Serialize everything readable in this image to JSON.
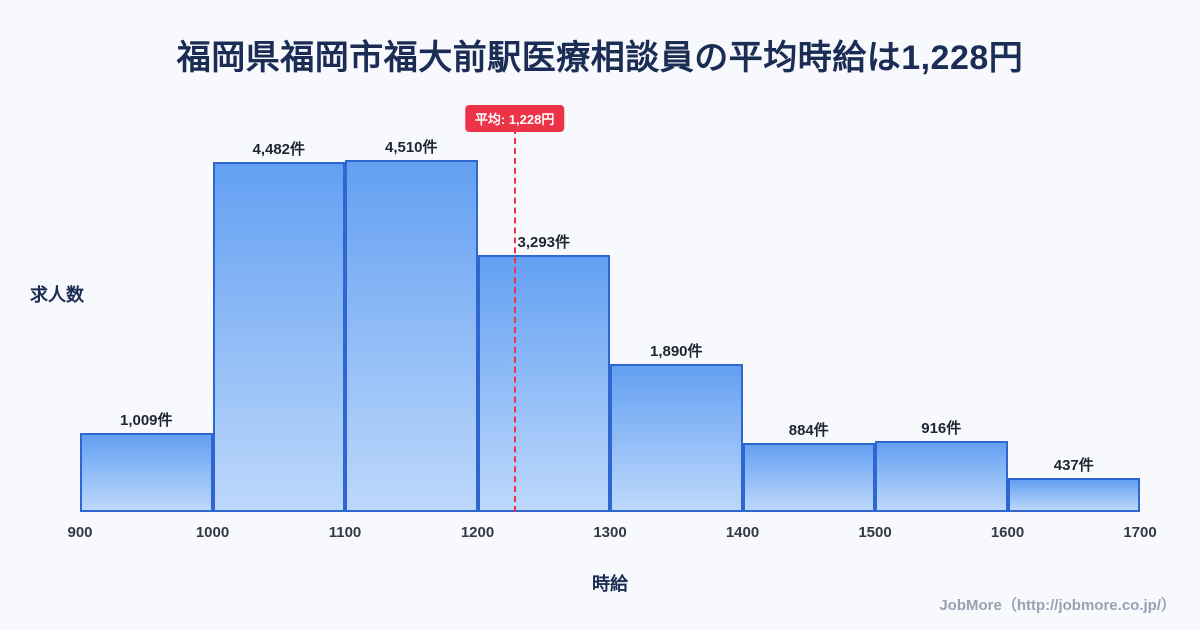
{
  "page": {
    "title": "福岡県福岡市福大前駅医療相談員の平均時給は1,228円",
    "footer": "JobMore（http://jobmore.co.jp/）"
  },
  "chart_data": {
    "type": "bar",
    "subtype": "histogram",
    "title": "福岡県福岡市福大前駅医療相談員の平均時給は1,228円",
    "xlabel": "時給",
    "ylabel": "求人数",
    "bin_edges": [
      900,
      1000,
      1100,
      1200,
      1300,
      1400,
      1500,
      1600,
      1700
    ],
    "tick_labels": [
      "900",
      "1000",
      "1100",
      "1200",
      "1300",
      "1400",
      "1500",
      "1600",
      "1700"
    ],
    "values": [
      1009,
      4482,
      4510,
      3293,
      1890,
      884,
      916,
      437
    ],
    "value_labels": [
      "1,009件",
      "4,482件",
      "4,510件",
      "3,293件",
      "1,890件",
      "884件",
      "916件",
      "437件"
    ],
    "average": 1228,
    "average_label": "平均: 1,228円",
    "ylim": [
      0,
      4510
    ],
    "grid": false,
    "legend": false,
    "colors": {
      "bar_top": "#63a0f2",
      "bar_bottom": "#bdd8fb",
      "bar_border": "#2f66cf",
      "average_line": "#ed3347",
      "title": "#1b2d55",
      "background": "#f7f9fc"
    }
  }
}
